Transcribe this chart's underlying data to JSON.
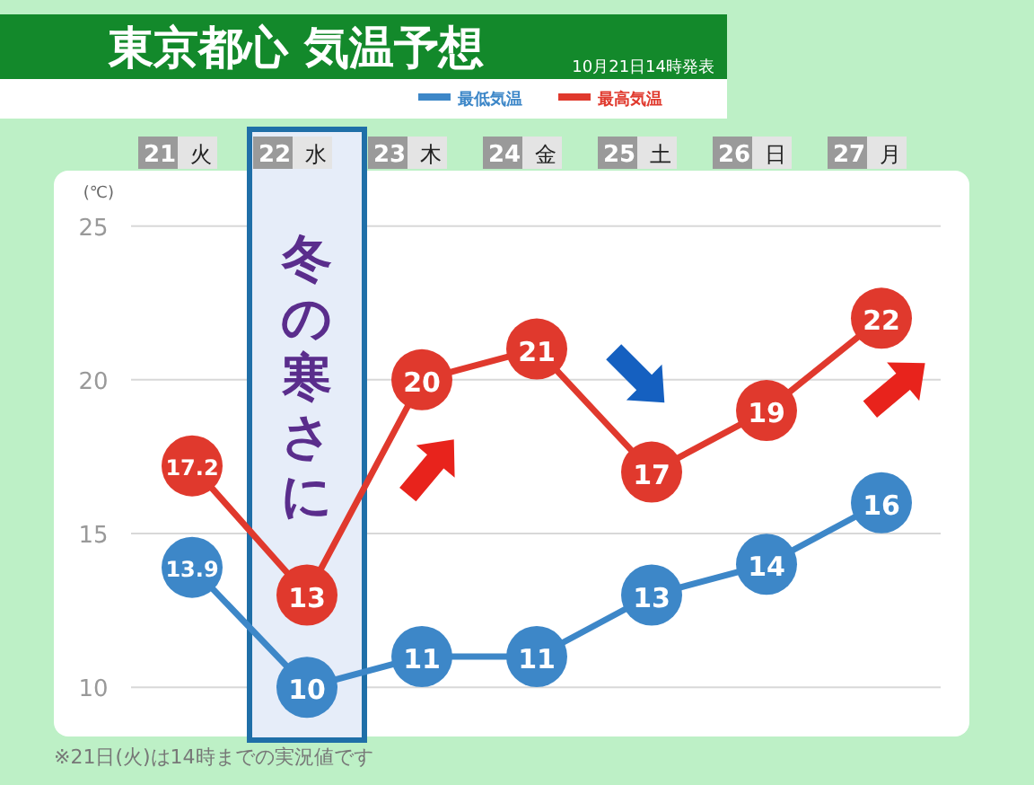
{
  "chart_data": {
    "type": "line",
    "title": "東京都心 気温予想",
    "subtitle": "10月21日14時発表",
    "ylabel": "(℃)",
    "categories": [
      "21 火",
      "22 水",
      "23 木",
      "24 金",
      "25 土",
      "26 日",
      "27 月"
    ],
    "series": [
      {
        "name": "最低気温",
        "color": "#3d87c8",
        "values": [
          13.9,
          10,
          11,
          11,
          13,
          14,
          16
        ]
      },
      {
        "name": "最高気温",
        "color": "#e0392d",
        "values": [
          17.2,
          13,
          20,
          21,
          17,
          19,
          22
        ]
      }
    ],
    "ylim": [
      8.4,
      26.8
    ],
    "yticks": [
      10,
      15,
      20,
      25
    ],
    "grid": "y",
    "legend": "top right",
    "data_labels": true,
    "marker": "circle",
    "annotations": [
      {
        "text": "冬の寒さに",
        "x": "22 水",
        "y": 13
      },
      "※21日(火)は14時までの実況値です"
    ]
  }
}
